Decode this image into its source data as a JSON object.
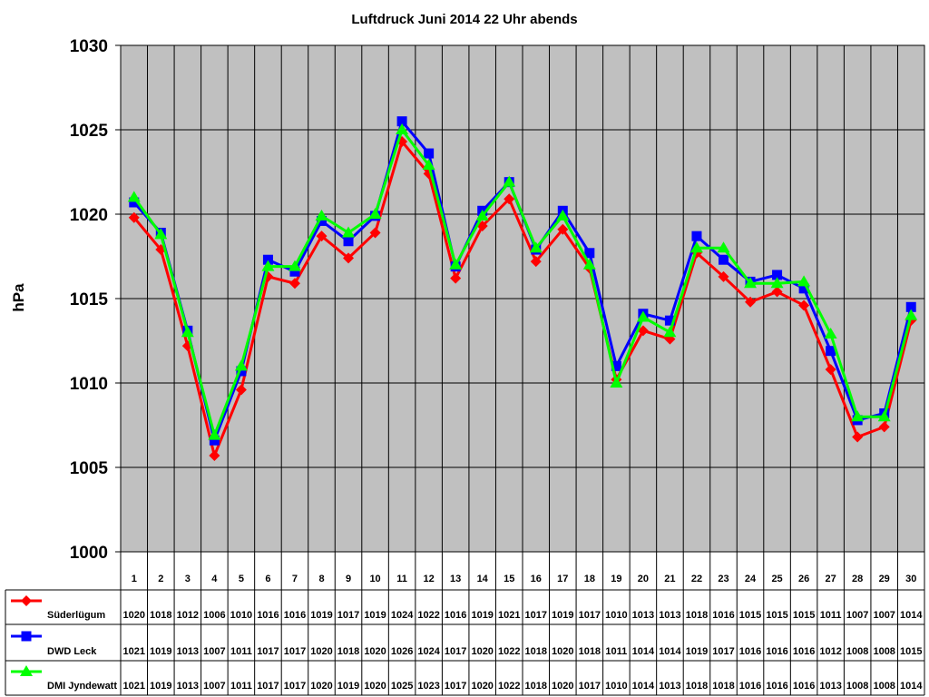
{
  "chart_data": {
    "type": "line",
    "title": "Luftdruck Juni 2014 22 Uhr abends",
    "ylabel": "hPa",
    "ylim": [
      1000,
      1030
    ],
    "yticks": [
      1000,
      1005,
      1010,
      1015,
      1020,
      1025,
      1030
    ],
    "grid": true,
    "legend_position": "bottom-left",
    "categories": [
      "1",
      "2",
      "3",
      "4",
      "5",
      "6",
      "7",
      "8",
      "9",
      "10",
      "11",
      "12",
      "13",
      "14",
      "15",
      "16",
      "17",
      "18",
      "19",
      "20",
      "21",
      "22",
      "23",
      "24",
      "25",
      "26",
      "27",
      "28",
      "29",
      "30"
    ],
    "plot_background": "#c0c0c0",
    "series": [
      {
        "name": "Süderlügum",
        "color": "#ff0000",
        "marker": "diamond",
        "values": [
          1019.8,
          1017.9,
          1012.2,
          1005.7,
          1009.6,
          1016.3,
          1015.9,
          1018.7,
          1017.4,
          1018.9,
          1024.3,
          1022.4,
          1016.2,
          1019.3,
          1020.9,
          1017.2,
          1019.1,
          1016.8,
          1010.2,
          1013.1,
          1012.6,
          1017.7,
          1016.3,
          1014.8,
          1015.4,
          1014.6,
          1010.8,
          1006.8,
          1007.4,
          1013.7
        ],
        "table_values": [
          "1020",
          "1018",
          "1012",
          "1006",
          "1010",
          "1016",
          "1016",
          "1019",
          "1017",
          "1019",
          "1024",
          "1022",
          "1016",
          "1019",
          "1021",
          "1017",
          "1019",
          "1017",
          "1010",
          "1013",
          "1013",
          "1018",
          "1016",
          "1015",
          "1015",
          "1015",
          "1011",
          "1007",
          "1007",
          "1014"
        ]
      },
      {
        "name": "DWD Leck",
        "color": "#0000ff",
        "marker": "square",
        "values": [
          1020.7,
          1018.9,
          1013.1,
          1006.6,
          1010.7,
          1017.3,
          1016.6,
          1019.6,
          1018.4,
          1019.9,
          1025.5,
          1023.6,
          1016.9,
          1020.2,
          1021.9,
          1017.9,
          1020.2,
          1017.7,
          1011.0,
          1014.1,
          1013.7,
          1018.7,
          1017.3,
          1016.0,
          1016.4,
          1015.6,
          1011.9,
          1007.8,
          1008.2,
          1014.5
        ],
        "table_values": [
          "1021",
          "1019",
          "1013",
          "1007",
          "1011",
          "1017",
          "1017",
          "1020",
          "1018",
          "1020",
          "1026",
          "1024",
          "1017",
          "1020",
          "1022",
          "1018",
          "1020",
          "1018",
          "1011",
          "1014",
          "1014",
          "1019",
          "1017",
          "1016",
          "1016",
          "1016",
          "1012",
          "1008",
          "1008",
          "1015"
        ]
      },
      {
        "name": "DMI Jyndewatt",
        "color": "#00ff00",
        "marker": "triangle",
        "values": [
          1021.0,
          1018.8,
          1013.0,
          1006.9,
          1011.0,
          1016.9,
          1016.9,
          1019.9,
          1018.9,
          1020.0,
          1025.0,
          1022.9,
          1017.0,
          1019.9,
          1021.9,
          1018.0,
          1019.9,
          1017.0,
          1010.0,
          1013.9,
          1013.0,
          1018.0,
          1018.0,
          1015.9,
          1015.9,
          1016.0,
          1012.9,
          1008.0,
          1008.0,
          1014.0
        ],
        "table_values": [
          "1021",
          "1019",
          "1013",
          "1007",
          "1011",
          "1017",
          "1017",
          "1020",
          "1019",
          "1020",
          "1025",
          "1023",
          "1017",
          "1020",
          "1022",
          "1018",
          "1020",
          "1017",
          "1010",
          "1014",
          "1013",
          "1018",
          "1018",
          "1016",
          "1016",
          "1016",
          "1013",
          "1008",
          "1008",
          "1014"
        ]
      }
    ]
  }
}
